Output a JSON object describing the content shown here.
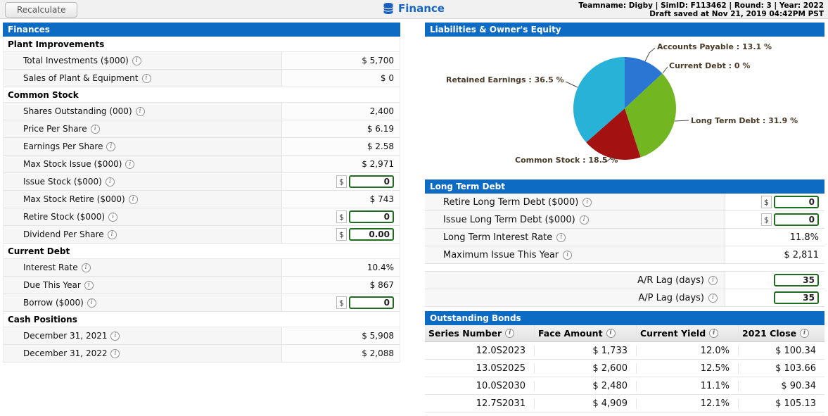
{
  "icons": {
    "info": "i"
  },
  "top_bar": {
    "recalculate_label": "Recalculate",
    "page_title": "Finance",
    "team_info": "Teamname: Digby | SimID: F113462 | Round: 3 | Year: 2022",
    "draft_info": "Draft saved at Nov 21, 2019 04:42PM PST"
  },
  "finances": {
    "title": "Finances",
    "sections": [
      {
        "header": "Plant Improvements",
        "rows": [
          {
            "label": "Total Investments ($000)",
            "value": "$ 5,700"
          },
          {
            "label": "Sales of Plant & Equipment",
            "value": "$ 0"
          }
        ]
      },
      {
        "header": "Common Stock",
        "rows": [
          {
            "label": "Shares Outstanding (000)",
            "value": "2,400"
          },
          {
            "label": "Price Per Share",
            "value": "$ 6.19"
          },
          {
            "label": "Earnings Per Share",
            "value": "$ 2.58"
          },
          {
            "label": "Max Stock Issue ($000)",
            "value": "$ 2,971"
          },
          {
            "label": "Issue Stock ($000)",
            "prefix": "$",
            "input": "0"
          },
          {
            "label": "Max Stock Retire ($000)",
            "value": "$ 743"
          },
          {
            "label": "Retire Stock ($000)",
            "prefix": "$",
            "input": "0"
          },
          {
            "label": "Dividend Per Share",
            "prefix": "$",
            "input": "0.00"
          }
        ]
      },
      {
        "header": "Current Debt",
        "rows": [
          {
            "label": "Interest Rate",
            "value": "10.4%"
          },
          {
            "label": "Due This Year",
            "value": "$ 867"
          },
          {
            "label": "Borrow ($000)",
            "prefix": "$",
            "input": "0"
          }
        ]
      },
      {
        "header": "Cash Positions",
        "rows": [
          {
            "label": "December 31, 2021",
            "value": "$ 5,908"
          },
          {
            "label": "December 31, 2022",
            "value": "$ 2,088"
          }
        ]
      }
    ]
  },
  "chart_data": {
    "type": "pie",
    "title": "Liabilities & Owner's Equity",
    "legend_position": "around",
    "slices": [
      {
        "label": "Accounts Payable",
        "value": 13.1,
        "color": "#2a76d2",
        "display": "Accounts Payable : 13.1 %"
      },
      {
        "label": "Current Debt",
        "value": 0,
        "color": "#d9d9d9",
        "display": "Current Debt : 0 %"
      },
      {
        "label": "Long Term Debt",
        "value": 31.9,
        "color": "#72b622",
        "display": "Long Term Debt : 31.9 %"
      },
      {
        "label": "Common Stock",
        "value": 18.5,
        "color": "#a31111",
        "display": "Common Stock : 18.5 %"
      },
      {
        "label": "Retained Earnings",
        "value": 36.5,
        "color": "#29b2d8",
        "display": "Retained Earnings : 36.5 %"
      }
    ]
  },
  "long_term_debt": {
    "title": "Long Term Debt",
    "rows": [
      {
        "label": "Retire Long Term Debt ($000)",
        "prefix": "$",
        "input": "0"
      },
      {
        "label": "Issue Long Term Debt ($000)",
        "prefix": "$",
        "input": "0"
      },
      {
        "label": "Long Term Interest Rate",
        "value": "11.8%"
      },
      {
        "label": "Maximum Issue This Year",
        "value": "$ 2,811"
      }
    ]
  },
  "lags": {
    "rows": [
      {
        "label": "A/R Lag (days)",
        "input": "35"
      },
      {
        "label": "A/P Lag (days)",
        "input": "35"
      }
    ]
  },
  "bonds": {
    "title": "Outstanding Bonds",
    "columns": [
      "Series Number",
      "Face Amount",
      "Current Yield",
      "2021 Close"
    ],
    "rows": [
      [
        "12.0S2023",
        "$ 1,733",
        "12.0%",
        "$ 100.34"
      ],
      [
        "13.0S2025",
        "$ 2,600",
        "12.5%",
        "$ 103.66"
      ],
      [
        "10.0S2030",
        "$ 2,480",
        "11.1%",
        "$ 90.34"
      ],
      [
        "12.7S2031",
        "$ 4,909",
        "12.1%",
        "$ 105.13"
      ]
    ]
  }
}
